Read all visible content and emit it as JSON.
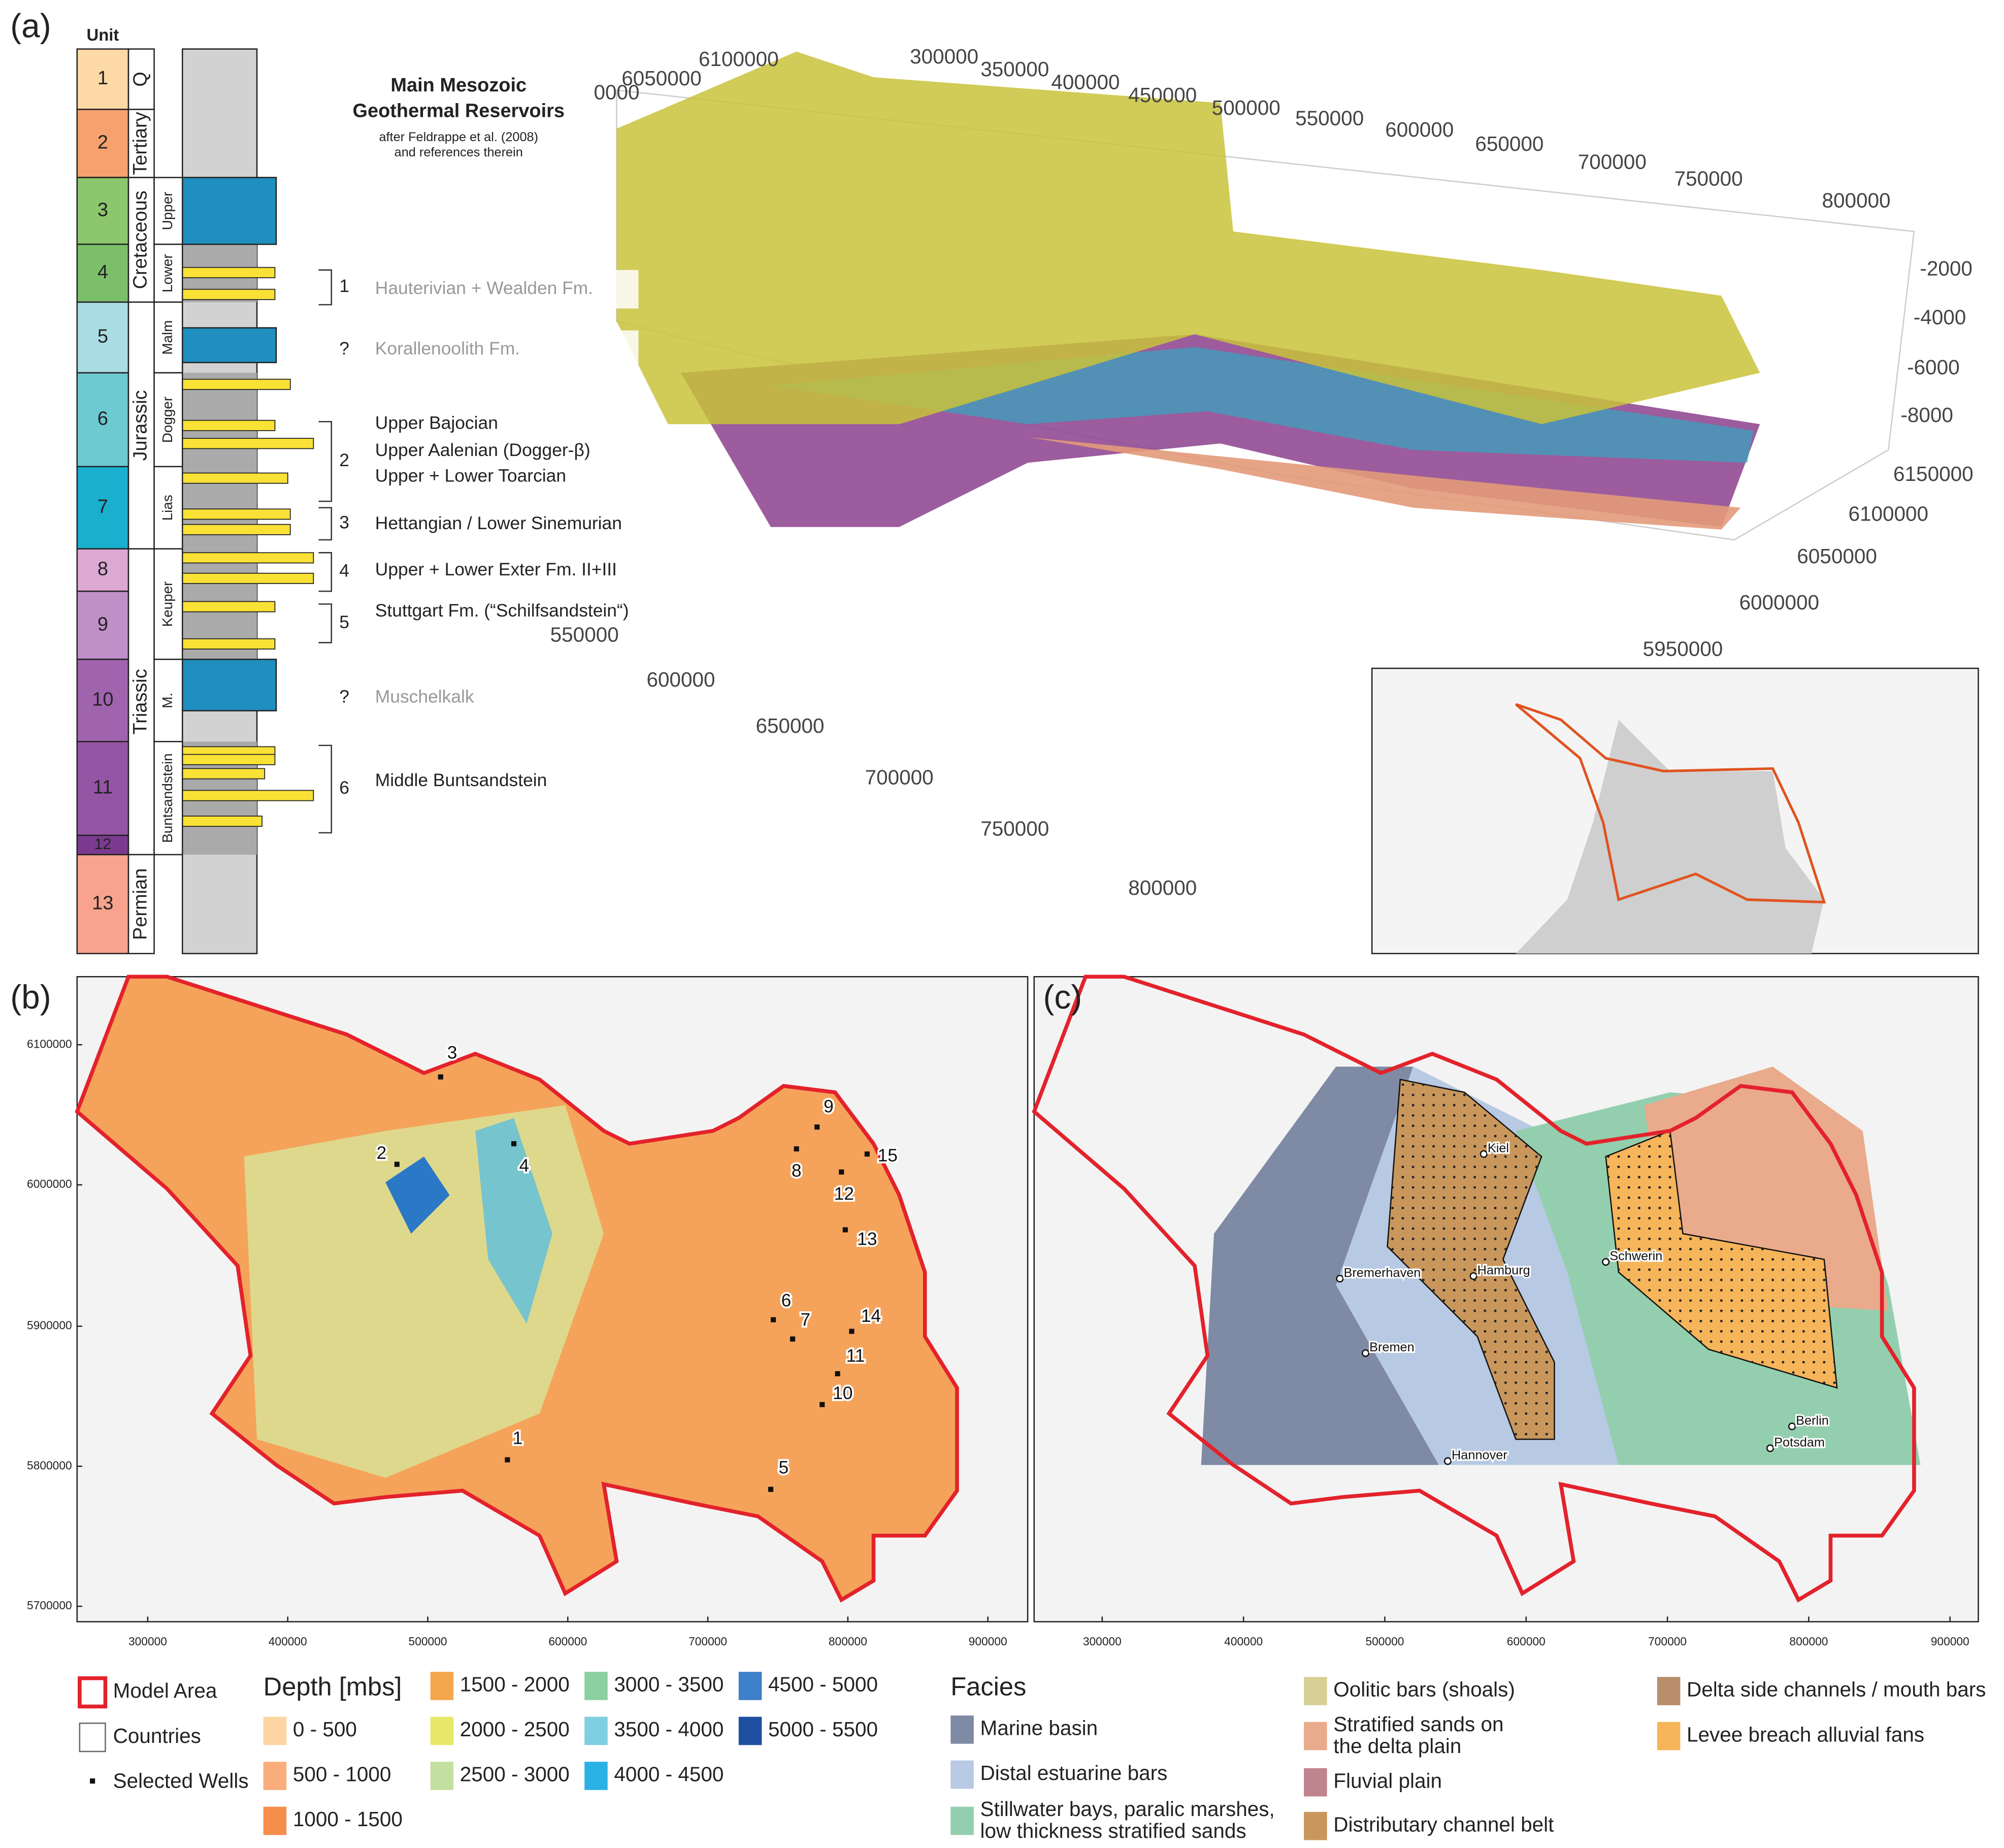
{
  "panel_a": {
    "label": "(a)",
    "unit_header": "Unit",
    "units": [
      1,
      2,
      3,
      4,
      5,
      6,
      7,
      8,
      9,
      10,
      11,
      12,
      13
    ],
    "periods": [
      "Q",
      "Tertiary",
      "Cretaceous",
      "Jurassic",
      "Triassic",
      "Permian"
    ],
    "epochs": [
      "Upper",
      "Lower",
      "Malm",
      "Dogger",
      "Lias",
      "Keuper",
      "M.",
      "Buntsandstein"
    ],
    "title": [
      "Main Mesozoic",
      "Geothermal Reservoirs"
    ],
    "subtitle": [
      "after Feldrappe et al. (2008)",
      "and references therein"
    ],
    "reservoirs": [
      {
        "number": "1",
        "names": [
          "Hauterivian + Wealden Fm."
        ]
      },
      {
        "number": "?",
        "names": [
          "Korallenoolith Fm."
        ]
      },
      {
        "number": "2",
        "names": [
          "Upper Bajocian",
          "Upper Aalenian (Dogger-β)",
          "Upper + Lower Toarcian"
        ]
      },
      {
        "number": "3",
        "names": [
          "Hettangian / Lower Sinemurian"
        ]
      },
      {
        "number": "4",
        "names": [
          "Upper + Lower Exter Fm. II+III"
        ]
      },
      {
        "number": "5",
        "names": [
          "Stuttgart Fm. (“Schilfsandstein“)"
        ]
      },
      {
        "number": "?",
        "names": [
          "Muschelkalk"
        ]
      },
      {
        "number": "6",
        "names": [
          "Middle Buntsandstein"
        ]
      }
    ],
    "model_axes": {
      "clipped": "0000",
      "north_top": [
        6100000,
        6050000
      ],
      "east_top": [
        300000,
        350000,
        400000,
        450000,
        500000,
        550000,
        600000,
        650000,
        700000,
        750000,
        800000
      ],
      "depth": [
        -2000,
        -4000,
        -6000,
        -8000
      ],
      "north_right": [
        6150000,
        6100000,
        6050000,
        6000000,
        5950000
      ],
      "east_bottom": [
        550000,
        600000,
        650000,
        700000,
        750000,
        800000
      ]
    }
  },
  "panel_b": {
    "label": "(b)",
    "yticks": [
      6100000,
      6000000,
      5900000,
      5800000,
      5700000
    ],
    "xticks": [
      300000,
      400000,
      500000,
      600000,
      700000,
      800000,
      900000
    ],
    "wells": [
      1,
      2,
      3,
      4,
      5,
      6,
      7,
      8,
      9,
      10,
      11,
      12,
      13,
      14,
      15
    ]
  },
  "panel_c": {
    "label": "(c)",
    "xticks": [
      300000,
      400000,
      500000,
      600000,
      700000,
      800000,
      900000
    ],
    "cities": [
      "Kiel",
      "Bremerhaven",
      "Hamburg",
      "Schwerin",
      "Bremen",
      "Hannover",
      "Berlin",
      "Potsdam"
    ]
  },
  "legend": {
    "map": [
      "Model Area",
      "Countries",
      "Selected Wells"
    ],
    "depth_title": "Depth [mbs]",
    "depth_classes": [
      "0 - 500",
      "500 - 1000",
      "1000 - 1500",
      "1500 - 2000",
      "2000 - 2500",
      "2500 - 3000",
      "3000 - 3500",
      "3500 - 4000",
      "4000 - 4500",
      "4500 - 5000",
      "5000 - 5500"
    ],
    "facies_title": "Facies",
    "facies": [
      [
        "Marine basin"
      ],
      [
        "Distal estuarine bars"
      ],
      [
        "Stillwater bays, paralic marshes,",
        "low thickness stratified sands"
      ],
      [
        "Oolitic bars (shoals)"
      ],
      [
        "Stratified sands on",
        "the delta plain"
      ],
      [
        "Fluvial plain"
      ],
      [
        "Distributary channel belt"
      ],
      [
        "Delta side channels / mouth bars"
      ],
      [
        "Levee breach alluvial fans"
      ]
    ]
  }
}
